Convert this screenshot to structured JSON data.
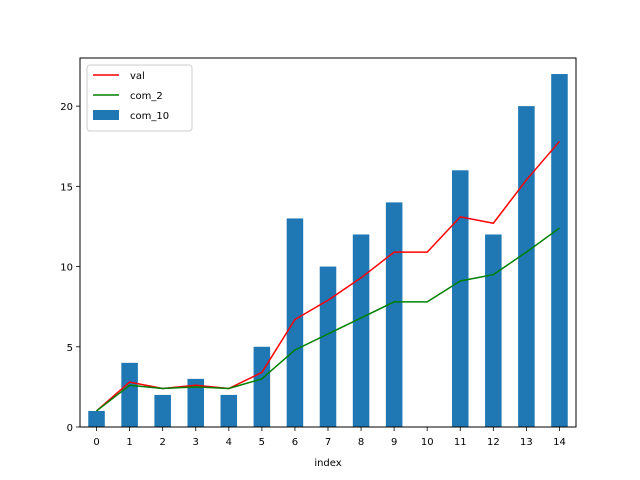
{
  "chart_data": {
    "type": "bar",
    "title": "",
    "xlabel": "index",
    "ylabel": "",
    "categories": [
      "0",
      "1",
      "2",
      "3",
      "4",
      "5",
      "6",
      "7",
      "8",
      "9",
      "10",
      "11",
      "12",
      "13",
      "14"
    ],
    "ylim": [
      0,
      23
    ],
    "yticks": [
      0,
      5,
      10,
      15,
      20
    ],
    "grid": false,
    "legend_position": "top-left",
    "series": [
      {
        "name": "val",
        "kind": "line",
        "color": "#ff0000",
        "values": [
          1.0,
          2.8,
          2.4,
          2.6,
          2.4,
          3.4,
          6.7,
          7.9,
          9.3,
          10.9,
          10.9,
          13.1,
          12.7,
          15.4,
          17.8
        ]
      },
      {
        "name": "com_2",
        "kind": "line",
        "color": "#008000",
        "values": [
          1.0,
          2.6,
          2.4,
          2.5,
          2.4,
          3.0,
          4.8,
          5.8,
          6.8,
          7.8,
          7.8,
          9.1,
          9.5,
          10.9,
          12.4
        ]
      },
      {
        "name": "com_10",
        "kind": "bar",
        "color": "#1f77b4",
        "values": [
          1,
          4,
          2,
          3,
          2,
          5,
          13,
          10,
          12,
          14,
          0,
          16,
          12,
          20,
          22
        ]
      }
    ]
  }
}
